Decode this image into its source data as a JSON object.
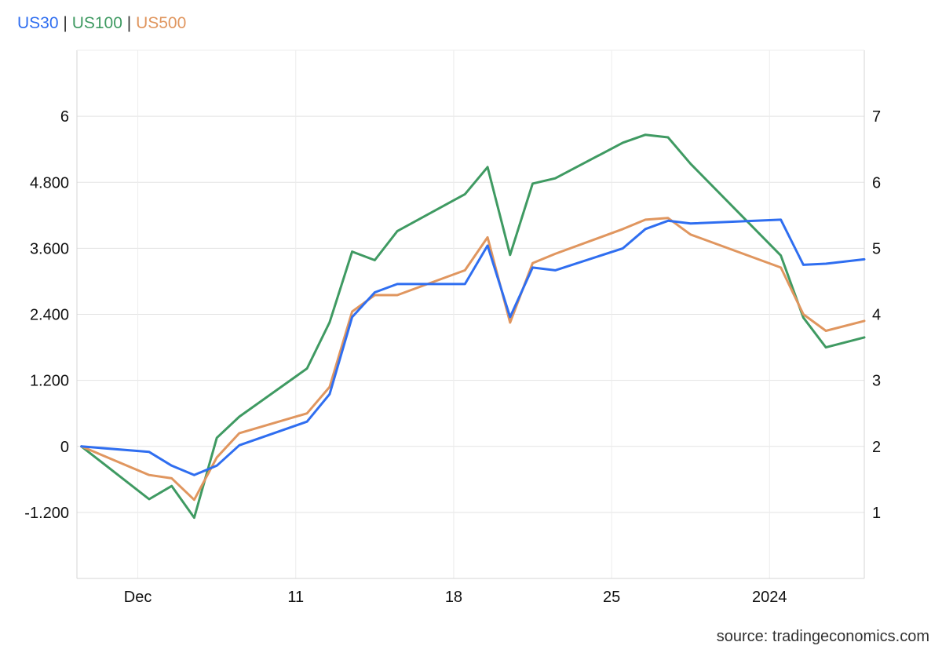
{
  "legend": {
    "items": [
      {
        "name": "US30",
        "color": "#2f6ef0"
      },
      {
        "name": "US100",
        "color": "#3f9a62"
      },
      {
        "name": "US500",
        "color": "#e0965f"
      }
    ],
    "separator": "|"
  },
  "source": "source: tradingeconomics.com",
  "chart_data": {
    "type": "line",
    "grid": true,
    "x_ticks": [
      {
        "label": "Dec",
        "t": 2.5
      },
      {
        "label": "11",
        "t": 9.5
      },
      {
        "label": "18",
        "t": 16.5
      },
      {
        "label": "25",
        "t": 23.5
      },
      {
        "label": "2024",
        "t": 30.5
      }
    ],
    "x_range": [
      -0.2,
      34.7
    ],
    "left_axis": {
      "ticks": [
        "-1.200",
        "0",
        "1.200",
        "2.400",
        "3.600",
        "4.800",
        "6"
      ],
      "values": [
        -1.2,
        0,
        1.2,
        2.4,
        3.6,
        4.8,
        6
      ],
      "range": [
        -2.4,
        7.2
      ]
    },
    "right_axis": {
      "ticks": [
        "1",
        "2",
        "3",
        "4",
        "5",
        "6",
        "7"
      ],
      "values": [
        1,
        2,
        3,
        4,
        5,
        6,
        7
      ],
      "range": [
        0,
        8
      ]
    },
    "series": [
      {
        "name": "US30",
        "axis": "left",
        "color": "#2f6ef0",
        "x": [
          0,
          3,
          4,
          5,
          6,
          7,
          10,
          11,
          12,
          13,
          14,
          17,
          18,
          19,
          20,
          21,
          24,
          25,
          26,
          27,
          31,
          32,
          33,
          34.7
        ],
        "y": [
          0,
          -0.1,
          -0.35,
          -0.52,
          -0.35,
          0.02,
          0.45,
          0.95,
          2.35,
          2.8,
          2.95,
          2.95,
          3.65,
          2.35,
          3.25,
          3.2,
          3.6,
          3.95,
          4.1,
          4.05,
          4.12,
          3.3,
          3.32,
          3.4
        ]
      },
      {
        "name": "US100",
        "axis": "right",
        "color": "#3f9a62",
        "x": [
          0,
          3,
          4,
          5,
          6,
          7,
          10,
          11,
          12,
          13,
          14,
          17,
          18,
          19,
          20,
          21,
          24,
          25,
          26,
          27,
          31,
          32,
          33,
          34.7
        ],
        "y": [
          2,
          1.2,
          1.4,
          0.92,
          2.13,
          2.45,
          3.18,
          3.88,
          4.95,
          4.82,
          5.26,
          5.82,
          6.23,
          4.9,
          5.98,
          6.06,
          6.6,
          6.72,
          6.68,
          6.28,
          4.89,
          3.95,
          3.5,
          3.65
        ]
      },
      {
        "name": "US500",
        "axis": "left",
        "color": "#e0965f",
        "x": [
          0,
          3,
          4,
          5,
          6,
          7,
          10,
          11,
          12,
          13,
          14,
          17,
          18,
          19,
          20,
          21,
          24,
          25,
          26,
          27,
          31,
          32,
          33,
          34.7
        ],
        "y": [
          0,
          -0.52,
          -0.58,
          -0.97,
          -0.2,
          0.24,
          0.6,
          1.08,
          2.45,
          2.75,
          2.75,
          3.2,
          3.8,
          2.25,
          3.33,
          3.5,
          3.95,
          4.12,
          4.15,
          3.85,
          3.25,
          2.4,
          2.1,
          2.28
        ]
      }
    ]
  }
}
